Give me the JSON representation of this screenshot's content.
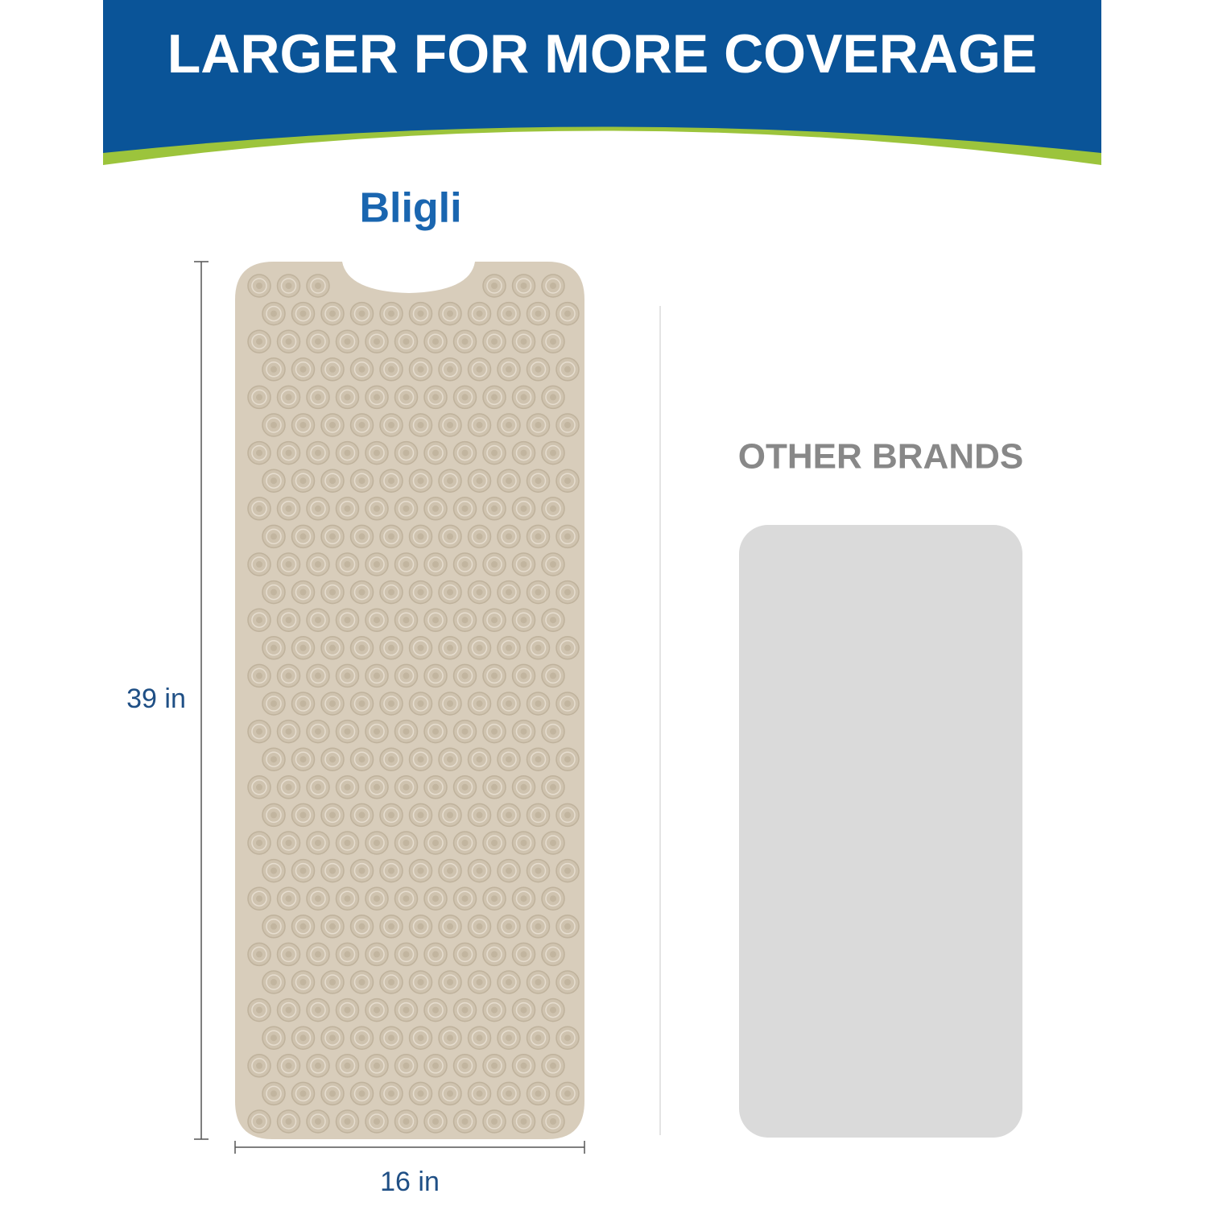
{
  "header": {
    "title": "LARGER FOR MORE COVERAGE"
  },
  "logo": {
    "text": "Bligli"
  },
  "product": {
    "height_label": "39 in",
    "width_label": "16 in"
  },
  "comparison": {
    "label": "OTHER BRANDS"
  }
}
